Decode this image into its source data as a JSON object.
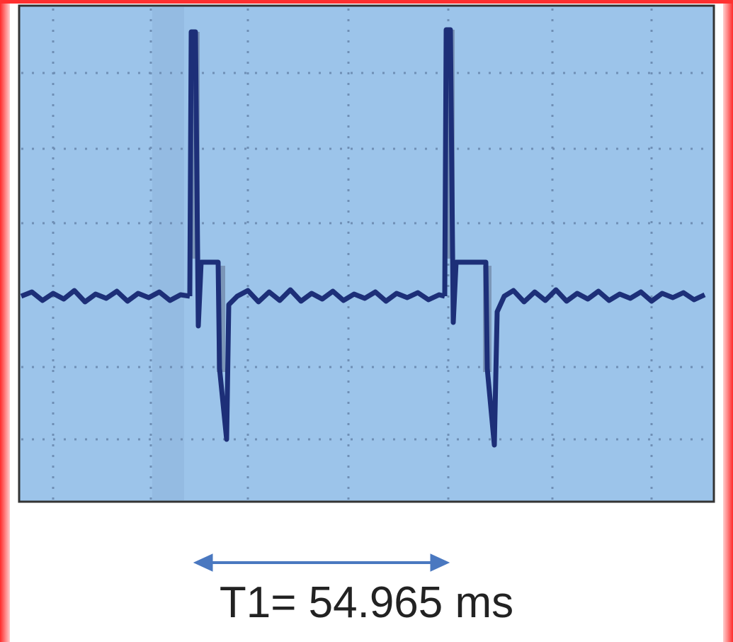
{
  "caption": "T1= 54.965 ms"
}
